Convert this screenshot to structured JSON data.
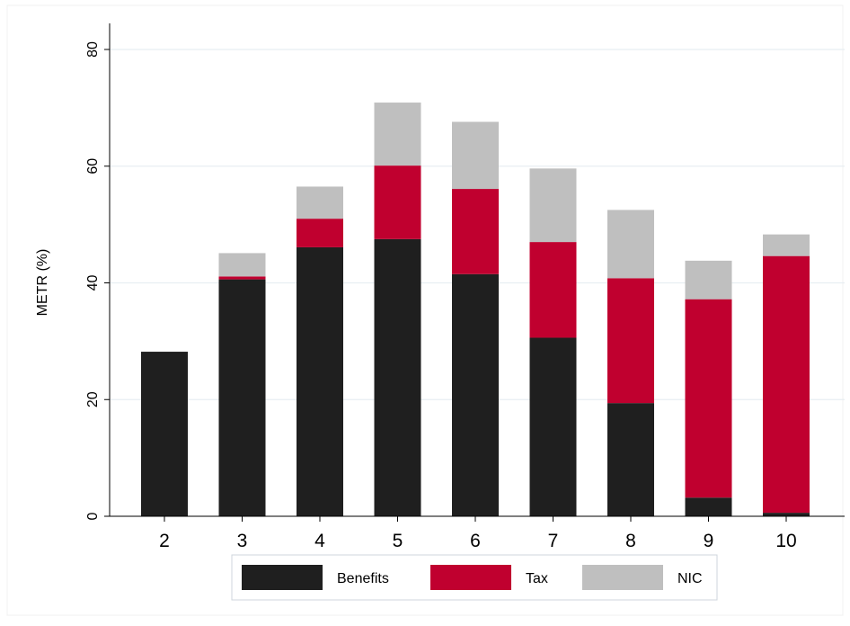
{
  "chart_data": {
    "type": "bar",
    "stacked": true,
    "categories": [
      "2",
      "3",
      "4",
      "5",
      "6",
      "7",
      "8",
      "9",
      "10"
    ],
    "series": [
      {
        "name": "Benefits",
        "color": "#1f1f1f",
        "values": [
          28.2,
          40.6,
          46.1,
          47.5,
          41.5,
          30.6,
          19.4,
          3.2,
          0.6
        ]
      },
      {
        "name": "Tax",
        "color": "#c0002f",
        "values": [
          0,
          0.5,
          4.9,
          12.6,
          14.6,
          16.4,
          21.4,
          34.0,
          44.0
        ]
      },
      {
        "name": "NIC",
        "color": "#bfbfbf",
        "values": [
          0,
          4.0,
          5.5,
          10.8,
          11.5,
          12.6,
          11.7,
          6.6,
          3.7
        ]
      }
    ],
    "title": "",
    "xlabel": "",
    "ylabel": "METR (%)",
    "ylim": [
      0,
      80
    ],
    "yticks": [
      "0",
      "20",
      "40",
      "60",
      "80"
    ],
    "grid": true,
    "legend": "bottom"
  }
}
